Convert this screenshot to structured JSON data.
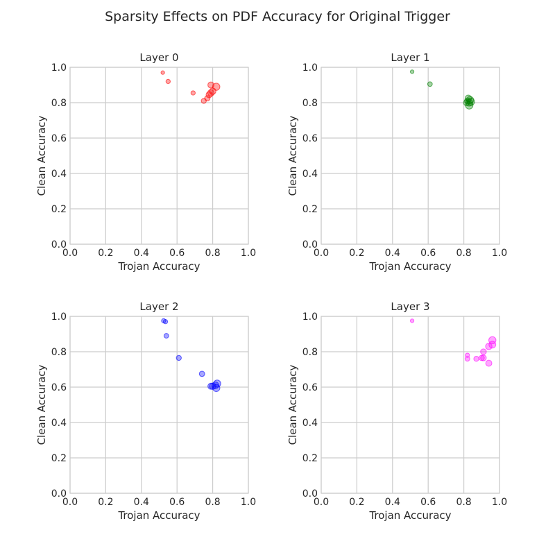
{
  "figure": {
    "title": "Sparsity Effects on PDF Accuracy for Original Trigger"
  },
  "chart_data": [
    {
      "type": "scatter",
      "title": "Layer 0",
      "xlabel": "Trojan Accuracy",
      "ylabel": "Clean Accuracy",
      "xlim": [
        0,
        1
      ],
      "ylim": [
        0,
        1
      ],
      "xticks": [
        "0.0",
        "0.2",
        "0.4",
        "0.6",
        "0.8",
        "1.0"
      ],
      "yticks": [
        "0.0",
        "0.2",
        "0.4",
        "0.6",
        "0.8",
        "1.0"
      ],
      "grid": true,
      "color": "#ff0000",
      "points": [
        {
          "x": 0.52,
          "y": 0.97,
          "s": 1
        },
        {
          "x": 0.55,
          "y": 0.92,
          "s": 1.2
        },
        {
          "x": 0.69,
          "y": 0.855,
          "s": 1.2
        },
        {
          "x": 0.75,
          "y": 0.81,
          "s": 1.4
        },
        {
          "x": 0.77,
          "y": 0.825,
          "s": 1.5
        },
        {
          "x": 0.78,
          "y": 0.845,
          "s": 1.7
        },
        {
          "x": 0.79,
          "y": 0.855,
          "s": 1.8
        },
        {
          "x": 0.8,
          "y": 0.865,
          "s": 1.8
        },
        {
          "x": 0.79,
          "y": 0.9,
          "s": 1.7
        },
        {
          "x": 0.82,
          "y": 0.89,
          "s": 2.0
        }
      ]
    },
    {
      "type": "scatter",
      "title": "Layer 1",
      "xlabel": "Trojan Accuracy",
      "ylabel": "Clean Accuracy",
      "xlim": [
        0,
        1
      ],
      "ylim": [
        0,
        1
      ],
      "xticks": [
        "0.0",
        "0.2",
        "0.4",
        "0.6",
        "0.8",
        "1.0"
      ],
      "yticks": [
        "0.0",
        "0.2",
        "0.4",
        "0.6",
        "0.8",
        "1.0"
      ],
      "grid": true,
      "color": "#008000",
      "points": [
        {
          "x": 0.51,
          "y": 0.975,
          "s": 1
        },
        {
          "x": 0.61,
          "y": 0.905,
          "s": 1.3
        },
        {
          "x": 0.82,
          "y": 0.81,
          "s": 1.6
        },
        {
          "x": 0.825,
          "y": 0.825,
          "s": 1.8
        },
        {
          "x": 0.83,
          "y": 0.8,
          "s": 1.9
        },
        {
          "x": 0.835,
          "y": 0.815,
          "s": 2.0
        },
        {
          "x": 0.84,
          "y": 0.805,
          "s": 2.0
        },
        {
          "x": 0.83,
          "y": 0.785,
          "s": 2.1
        },
        {
          "x": 0.815,
          "y": 0.8,
          "s": 1.7
        }
      ]
    },
    {
      "type": "scatter",
      "title": "Layer 2",
      "xlabel": "Trojan Accuracy",
      "ylabel": "Clean Accuracy",
      "xlim": [
        0,
        1
      ],
      "ylim": [
        0,
        1
      ],
      "xticks": [
        "0.0",
        "0.2",
        "0.4",
        "0.6",
        "0.8",
        "1.0"
      ],
      "yticks": [
        "0.0",
        "0.2",
        "0.4",
        "0.6",
        "0.8",
        "1.0"
      ],
      "grid": true,
      "color": "#0000ff",
      "points": [
        {
          "x": 0.525,
          "y": 0.975,
          "s": 1.2
        },
        {
          "x": 0.535,
          "y": 0.97,
          "s": 1.2
        },
        {
          "x": 0.54,
          "y": 0.89,
          "s": 1.3
        },
        {
          "x": 0.61,
          "y": 0.765,
          "s": 1.4
        },
        {
          "x": 0.74,
          "y": 0.675,
          "s": 1.5
        },
        {
          "x": 0.79,
          "y": 0.605,
          "s": 1.7
        },
        {
          "x": 0.8,
          "y": 0.605,
          "s": 1.8
        },
        {
          "x": 0.815,
          "y": 0.61,
          "s": 1.9
        },
        {
          "x": 0.82,
          "y": 0.595,
          "s": 2.0
        },
        {
          "x": 0.825,
          "y": 0.62,
          "s": 2.0
        }
      ]
    },
    {
      "type": "scatter",
      "title": "Layer 3",
      "xlabel": "Trojan Accuracy",
      "ylabel": "Clean Accuracy",
      "xlim": [
        0,
        1
      ],
      "ylim": [
        0,
        1
      ],
      "xticks": [
        "0.0",
        "0.2",
        "0.4",
        "0.6",
        "0.8",
        "1.0"
      ],
      "yticks": [
        "0.0",
        "0.2",
        "0.4",
        "0.6",
        "0.8",
        "1.0"
      ],
      "grid": true,
      "color": "#ff00ff",
      "points": [
        {
          "x": 0.51,
          "y": 0.975,
          "s": 1
        },
        {
          "x": 0.82,
          "y": 0.78,
          "s": 1.2
        },
        {
          "x": 0.82,
          "y": 0.76,
          "s": 1.3
        },
        {
          "x": 0.87,
          "y": 0.76,
          "s": 1.4
        },
        {
          "x": 0.9,
          "y": 0.765,
          "s": 1.5
        },
        {
          "x": 0.91,
          "y": 0.765,
          "s": 1.6
        },
        {
          "x": 0.91,
          "y": 0.8,
          "s": 1.6
        },
        {
          "x": 0.94,
          "y": 0.735,
          "s": 1.7
        },
        {
          "x": 0.94,
          "y": 0.83,
          "s": 1.8
        },
        {
          "x": 0.96,
          "y": 0.84,
          "s": 1.9
        },
        {
          "x": 0.96,
          "y": 0.865,
          "s": 2.0
        }
      ]
    }
  ]
}
